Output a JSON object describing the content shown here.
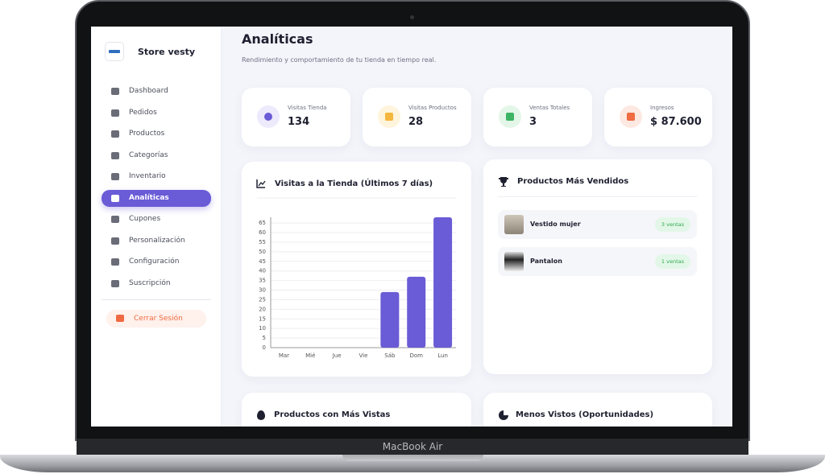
{
  "laptop": {
    "label": "MacBook Air"
  },
  "sidebar": {
    "store_name": "Store vesty",
    "menu": [
      "Dashboard",
      "Pedidos",
      "Productos",
      "Categorías",
      "Inventario",
      "Analíticas",
      "Cupones",
      "Personalización",
      "Configuración",
      "Suscripción"
    ],
    "active_index": 5,
    "logout": "Cerrar Sesión"
  },
  "header": {
    "title": "Analíticas",
    "subtitle": "Rendimiento y comportamiento de tu tienda en tiempo real."
  },
  "stats": [
    {
      "label": "Visitas Tienda",
      "value": 134
    },
    {
      "label": "Visitas Productos",
      "value": 28
    },
    {
      "label": "Ventas Totales",
      "value": 3
    },
    {
      "label": "Ingresos",
      "value": "$ 87.600"
    }
  ],
  "chart_data": {
    "type": "bar",
    "title": "Visitas a la Tienda (Últimos 7 días)",
    "categories": [
      "Mar",
      "Mié",
      "Jue",
      "Vie",
      "Sáb",
      "Dom",
      "Lun"
    ],
    "values": [
      0,
      0,
      0,
      0,
      29,
      37,
      68
    ],
    "color": "#6a5bd6",
    "ylim": [
      0,
      68
    ],
    "yticks": [
      0,
      5,
      10,
      15,
      20,
      25,
      30,
      35,
      40,
      45,
      50,
      55,
      60,
      65
    ],
    "grid": true
  },
  "top_products": {
    "title": "Productos Más Vendidos",
    "items": [
      {
        "name": "Vestido mujer",
        "badge": "3 ventas"
      },
      {
        "name": "Pantalon",
        "badge": "1 ventas"
      }
    ]
  },
  "sections": [
    "Productos con Más Vistas",
    "Menos Vistos (Oportunidades)"
  ]
}
